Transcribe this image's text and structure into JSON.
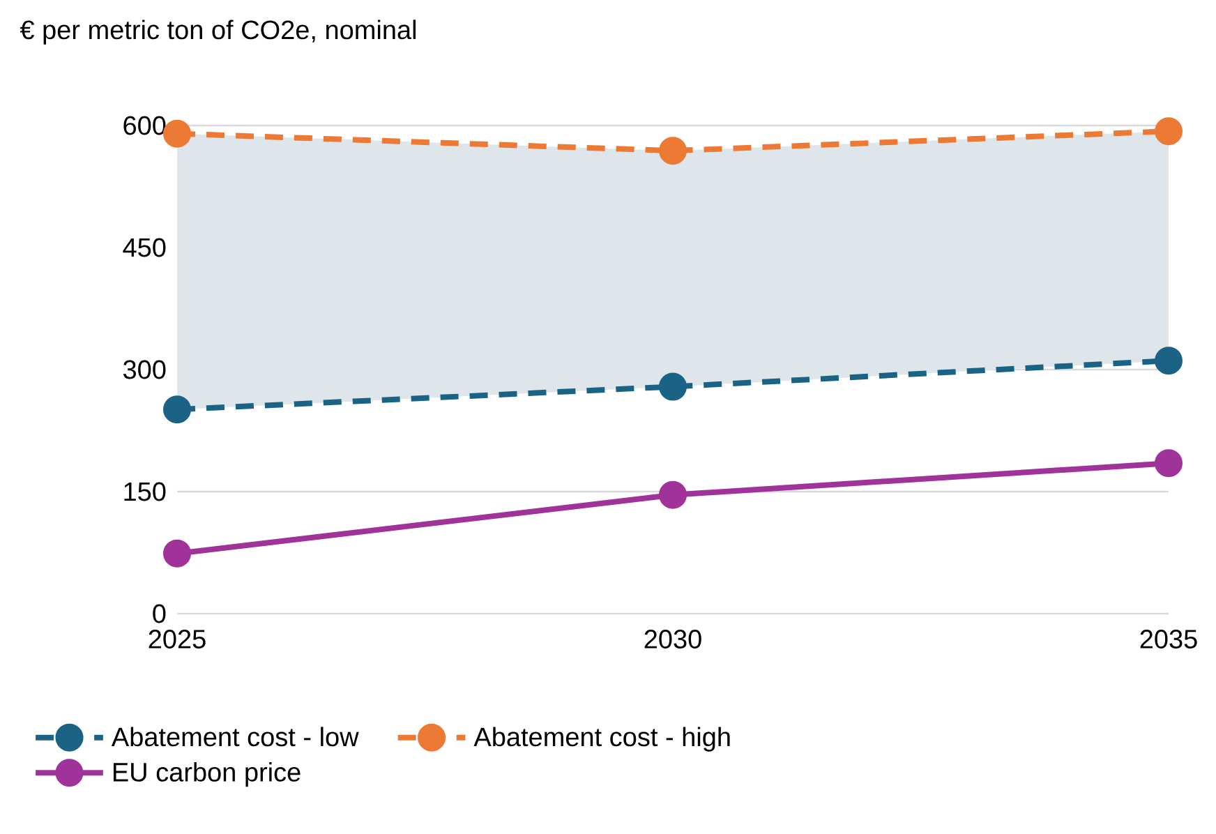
{
  "chart_data": {
    "type": "line",
    "ylabel": "€ per metric ton of CO2e, nominal",
    "x": [
      2025,
      2030,
      2035
    ],
    "xlim": [
      2025,
      2035
    ],
    "xticks": [
      2025,
      2030,
      2035
    ],
    "ylim": [
      0,
      600
    ],
    "yticks": [
      0,
      150,
      300,
      450,
      600
    ],
    "grid": "y",
    "legend": "bottom",
    "marker": "circle",
    "series": [
      {
        "name": "Abatement cost - low",
        "color": "#1a6385",
        "line_style": "dashed",
        "values": [
          251,
          279,
          311
        ]
      },
      {
        "name": "Abatement cost - high",
        "color": "#ec7a35",
        "line_style": "dashed",
        "values": [
          590,
          569,
          593
        ],
        "lower": [
          251,
          279,
          311
        ],
        "upper": [
          590,
          569,
          593
        ]
      },
      {
        "name": "EU carbon price",
        "color": "#a0339a",
        "line_style": "solid",
        "values": [
          74,
          146,
          185
        ]
      }
    ]
  }
}
